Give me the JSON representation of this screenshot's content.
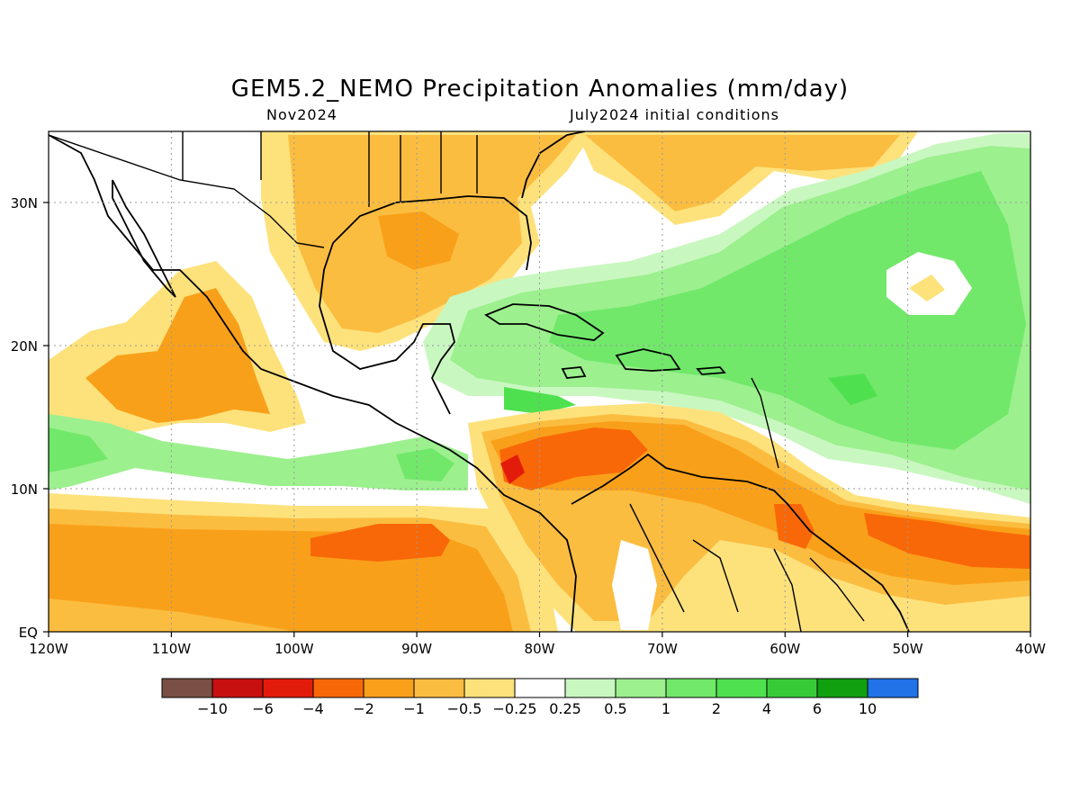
{
  "header": {
    "title": "GEM5.2_NEMO Precipitation Anomalies (mm/day)",
    "left_subtitle": "Nov2024",
    "right_subtitle": "July2024 initial conditions"
  },
  "axes": {
    "lon_ticks": [
      "120W",
      "110W",
      "100W",
      "90W",
      "80W",
      "70W",
      "60W",
      "50W",
      "40W"
    ],
    "lat_ticks": [
      "EQ",
      "10N",
      "20N",
      "30N"
    ]
  },
  "colorbar": {
    "colors": [
      "#7a4f45",
      "#c81010",
      "#e31b0b",
      "#f96808",
      "#f9a01a",
      "#fbbd40",
      "#fde27c",
      "#ffffff",
      "#c9f7c0",
      "#9cf08e",
      "#71e86a",
      "#4fe04f",
      "#37cc37",
      "#10a010",
      "#2272e8"
    ],
    "labels": [
      "-10",
      "-6",
      "-4",
      "-2",
      "-1",
      "-0.5",
      "-0.25",
      "0.25",
      "0.5",
      "1",
      "2",
      "4",
      "6",
      "10"
    ]
  }
}
